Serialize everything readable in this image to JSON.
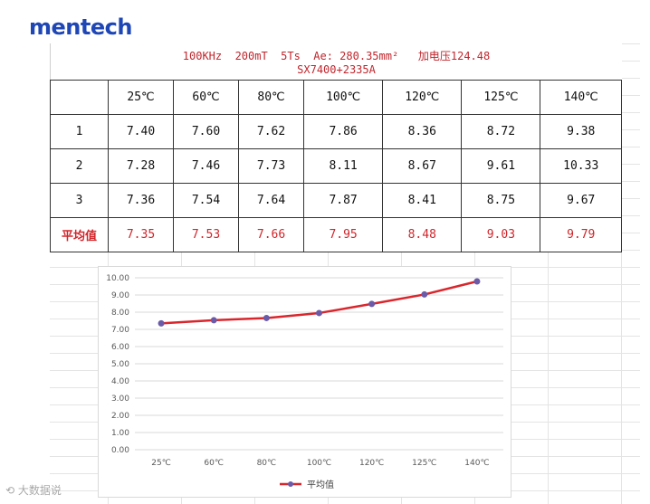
{
  "brand": {
    "logo_text": "mentech"
  },
  "table": {
    "header_line1": "100KHz  200mT  5Ts  Ae: 280.35mm²   加电压124.48",
    "header_line2": "SX7400+2335A",
    "columns": [
      "",
      "25℃",
      "60℃",
      "80℃",
      "100℃",
      "120℃",
      "125℃",
      "140℃"
    ],
    "rows": [
      {
        "label": "1",
        "values": [
          "7.40",
          "7.60",
          "7.62",
          "7.86",
          "8.36",
          "8.72",
          "9.38"
        ]
      },
      {
        "label": "2",
        "values": [
          "7.28",
          "7.46",
          "7.73",
          "8.11",
          "8.67",
          "9.61",
          "10.33"
        ]
      },
      {
        "label": "3",
        "values": [
          "7.36",
          "7.54",
          "7.64",
          "7.87",
          "8.41",
          "8.75",
          "9.67"
        ]
      },
      {
        "label": "平均值",
        "values": [
          "7.35",
          "7.53",
          "7.66",
          "7.95",
          "8.48",
          "9.03",
          "9.79"
        ]
      }
    ]
  },
  "chart_data": {
    "type": "line",
    "categories": [
      "25℃",
      "60℃",
      "80℃",
      "100℃",
      "120℃",
      "125℃",
      "140℃"
    ],
    "series": [
      {
        "name": "平均值",
        "values": [
          7.35,
          7.53,
          7.66,
          7.95,
          8.48,
          9.03,
          9.79
        ],
        "color": "#d9262c",
        "marker_color": "#6b5aa8"
      }
    ],
    "ylim": [
      0,
      10
    ],
    "yticks": [
      "0.00",
      "1.00",
      "2.00",
      "3.00",
      "4.00",
      "5.00",
      "6.00",
      "7.00",
      "8.00",
      "9.00",
      "10.00"
    ],
    "grid": true,
    "legend": "bottom-center"
  },
  "watermark": {
    "text": "大数据说"
  },
  "colors": {
    "accent_red": "#c0262d",
    "brand_blue": "#1f46b5"
  }
}
